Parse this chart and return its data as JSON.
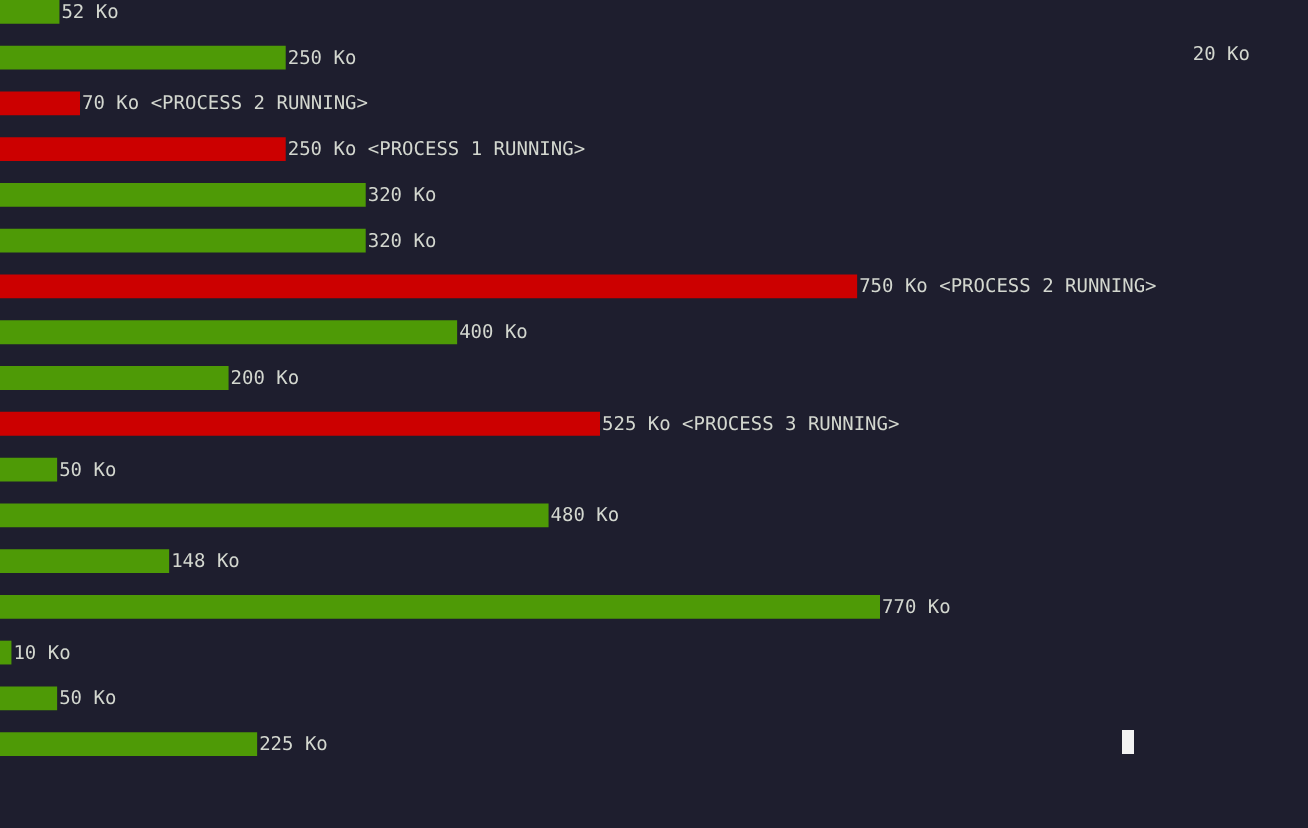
{
  "chart_data": {
    "type": "bar",
    "orientation": "horizontal",
    "categories": [
      null,
      null,
      null,
      null,
      null,
      null,
      null,
      null,
      null,
      null,
      null,
      null,
      null,
      null,
      null,
      null,
      null
    ],
    "values": [
      52,
      250,
      70,
      250,
      320,
      320,
      750,
      400,
      200,
      525,
      50,
      480,
      148,
      770,
      10,
      50,
      225
    ],
    "colors": [
      "#4e9a06",
      "#4e9a06",
      "#cc0000",
      "#cc0000",
      "#4e9a06",
      "#4e9a06",
      "#cc0000",
      "#4e9a06",
      "#4e9a06",
      "#cc0000",
      "#4e9a06",
      "#4e9a06",
      "#4e9a06",
      "#4e9a06",
      "#4e9a06",
      "#4e9a06",
      "#4e9a06"
    ],
    "value_labels": [
      "52 Ko",
      "250 Ko",
      "70 Ko <PROCESS 2 RUNNING>",
      "250 Ko <PROCESS 1 RUNNING>",
      "320 Ko",
      "320 Ko",
      "750 Ko <PROCESS 2 RUNNING>",
      "400 Ko",
      "200 Ko",
      "525 Ko <PROCESS 3 RUNNING>",
      "50 Ko",
      "480 Ko",
      "148 Ko",
      "770 Ko",
      "10 Ko",
      "50 Ko",
      "225 Ko"
    ],
    "annotations": [
      "20 Ko"
    ]
  }
}
